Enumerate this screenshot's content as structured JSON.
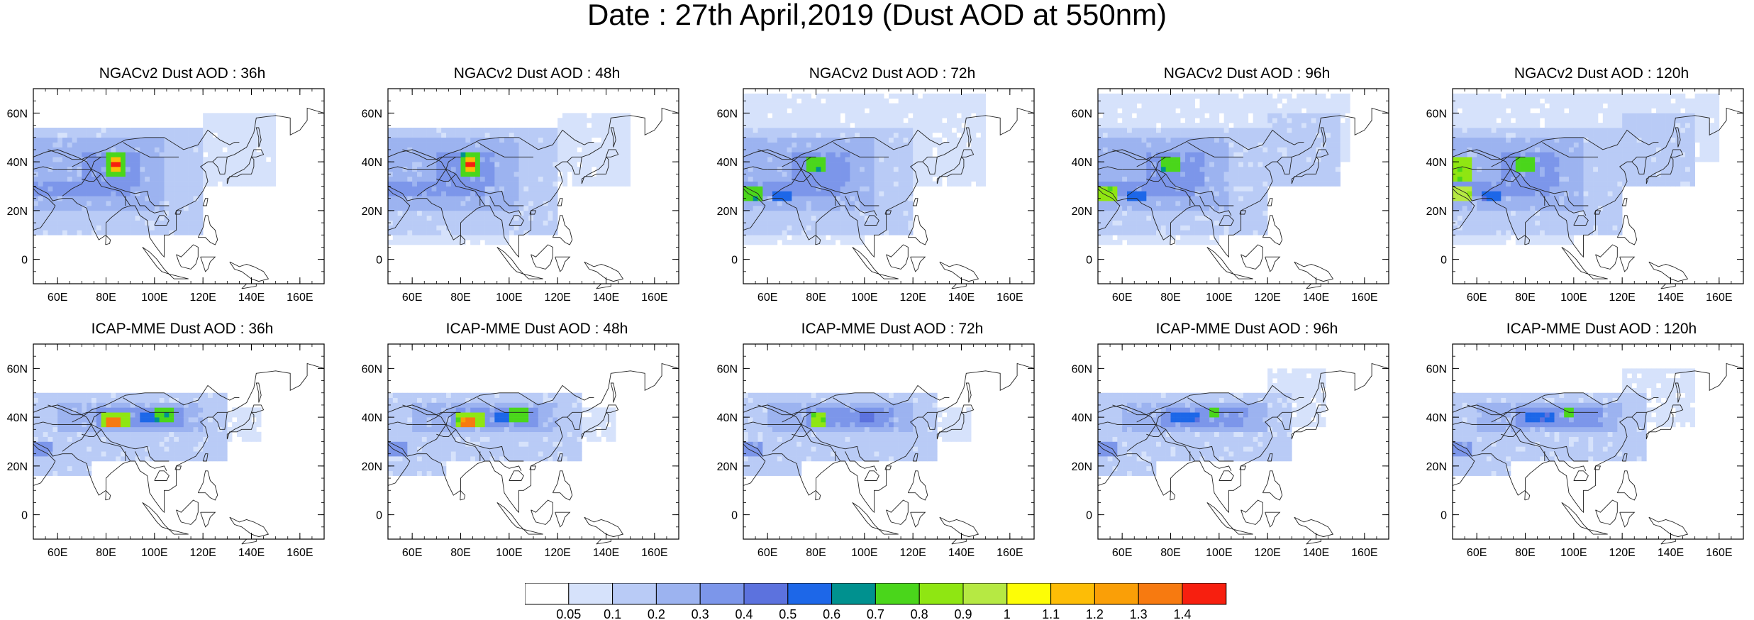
{
  "title": "Date : 27th April,2019 (Dust AOD at 550nm)",
  "axes": {
    "lat_ticks": [
      {
        "v": 60,
        "label": "60N"
      },
      {
        "v": 40,
        "label": "40N"
      },
      {
        "v": 20,
        "label": "20N"
      },
      {
        "v": 0,
        "label": "0"
      }
    ],
    "lon_ticks": [
      {
        "v": 60,
        "label": "60E"
      },
      {
        "v": 80,
        "label": "80E"
      },
      {
        "v": 100,
        "label": "100E"
      },
      {
        "v": 120,
        "label": "120E"
      },
      {
        "v": 140,
        "label": "140E"
      },
      {
        "v": 160,
        "label": "160E"
      }
    ],
    "lon_range": [
      50,
      170
    ],
    "lat_range": [
      -10,
      70
    ]
  },
  "colorbar": {
    "labels": [
      "0.05",
      "0.1",
      "0.2",
      "0.3",
      "0.4",
      "0.5",
      "0.6",
      "0.7",
      "0.8",
      "0.9",
      "1",
      "1.1",
      "1.2",
      "1.3",
      "1.4"
    ],
    "colors": [
      "#ffffff",
      "#d6e2fb",
      "#b9cbf6",
      "#9cb3f0",
      "#7c96ea",
      "#5c72de",
      "#1d67e8",
      "#00918f",
      "#4ad61b",
      "#8fe612",
      "#b6e943",
      "#fdfd06",
      "#fdbd06",
      "#fa9f07",
      "#f77a10",
      "#f71f0f"
    ]
  },
  "panels": [
    {
      "title": "NGACv2 Dust AOD : 36h",
      "model": "NGACv2",
      "lead": "36h"
    },
    {
      "title": "NGACv2 Dust AOD : 48h",
      "model": "NGACv2",
      "lead": "48h"
    },
    {
      "title": "NGACv2 Dust AOD : 72h",
      "model": "NGACv2",
      "lead": "72h"
    },
    {
      "title": "NGACv2 Dust AOD : 96h",
      "model": "NGACv2",
      "lead": "96h"
    },
    {
      "title": "NGACv2 Dust AOD : 120h",
      "model": "NGACv2",
      "lead": "120h"
    },
    {
      "title": "ICAP-MME Dust AOD : 36h",
      "model": "ICAP-MME",
      "lead": "36h"
    },
    {
      "title": "ICAP-MME Dust AOD : 48h",
      "model": "ICAP-MME",
      "lead": "48h"
    },
    {
      "title": "ICAP-MME Dust AOD : 72h",
      "model": "ICAP-MME",
      "lead": "72h"
    },
    {
      "title": "ICAP-MME Dust AOD : 96h",
      "model": "ICAP-MME",
      "lead": "96h"
    },
    {
      "title": "ICAP-MME Dust AOD : 120h",
      "model": "ICAP-MME",
      "lead": "120h"
    }
  ]
}
